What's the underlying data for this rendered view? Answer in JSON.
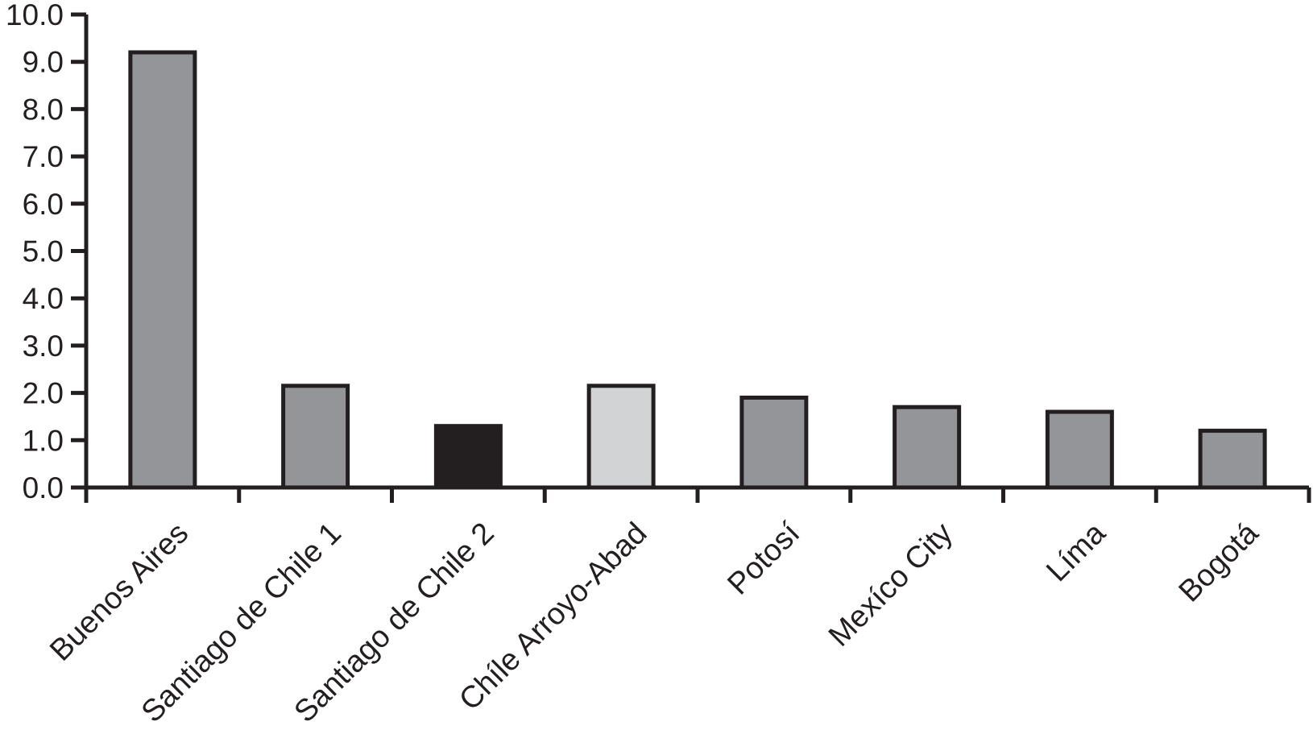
{
  "chart_data": {
    "type": "bar",
    "title": "",
    "categories": [
      "Buenos Aires",
      "Santiago de Chile 1",
      "Santiago de Chile 2",
      "Chíle Arroyo-Abad",
      "Potosí",
      "Mexíco City",
      "Líma",
      "Bogotá"
    ],
    "values": [
      9.2,
      2.15,
      1.3,
      2.15,
      1.9,
      1.7,
      1.6,
      1.2
    ],
    "bar_colors": [
      "#939598",
      "#939598",
      "#231f20",
      "#d1d3d4",
      "#939598",
      "#939598",
      "#939598",
      "#939598"
    ],
    "xlabel": "",
    "ylabel": "",
    "ylim": [
      0,
      10
    ],
    "ytick_values": [
      0,
      1,
      2,
      3,
      4,
      5,
      6,
      7,
      8,
      9,
      10
    ],
    "ytick_labels": [
      "0.0",
      "1.0",
      "2.0",
      "3.0",
      "4.0",
      "5.0",
      "6.0",
      "7.0",
      "8.0",
      "9.0",
      "10.0"
    ],
    "grid": false,
    "legend": "none",
    "xtick_label_rotation_deg": 45,
    "bar_border_color": "#231f20",
    "axis_color": "#231f20",
    "background_color": "#ffffff"
  }
}
